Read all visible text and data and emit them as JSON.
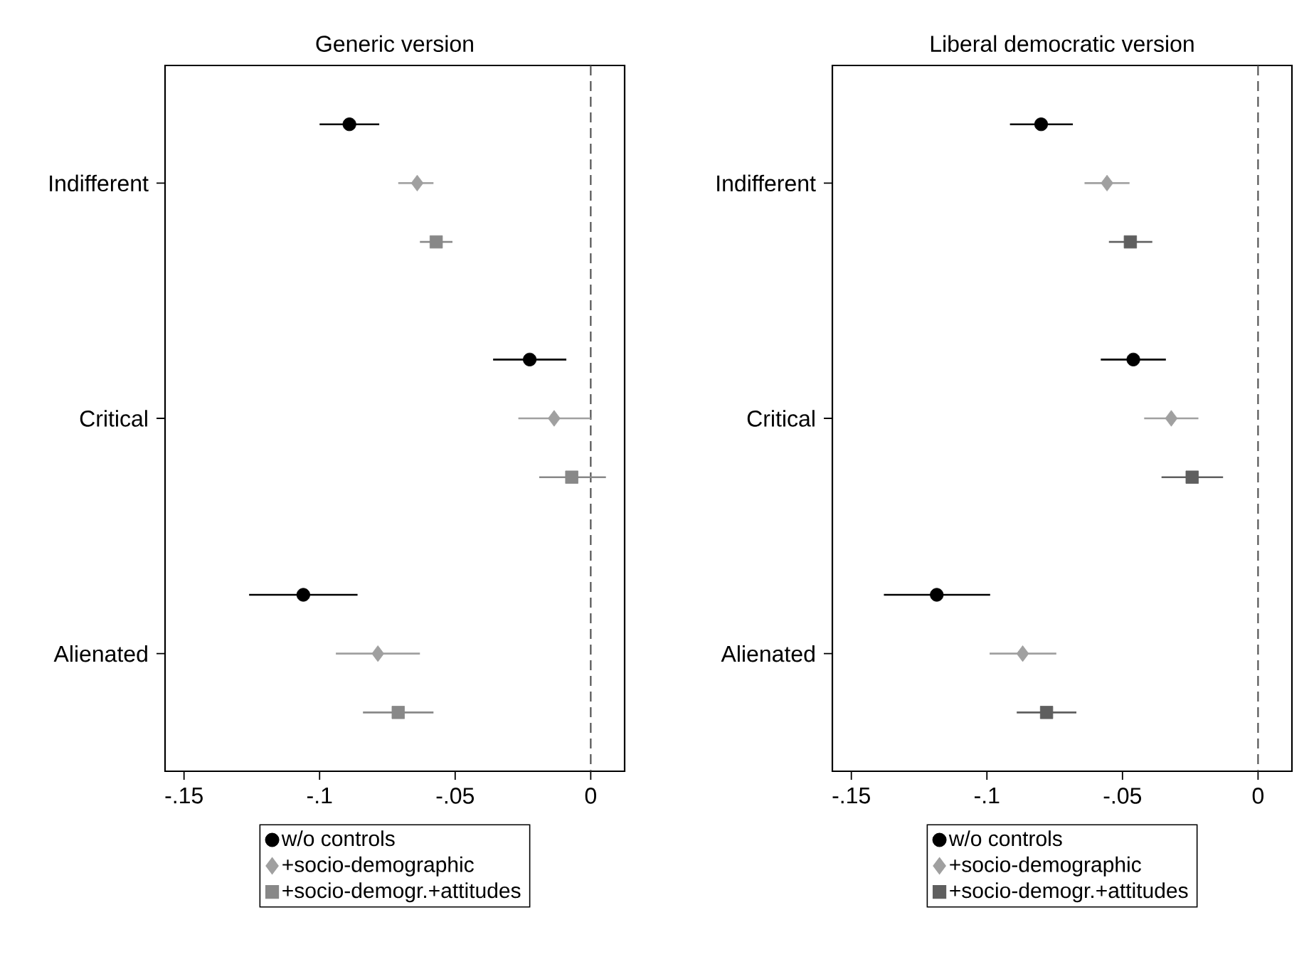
{
  "chart_data": [
    {
      "type": "scatter",
      "orientation": "horizontal",
      "title": "Generic version",
      "categories": [
        "Indifferent",
        "Critical",
        "Alienated"
      ],
      "xlim": [
        -0.157,
        0.0125
      ],
      "xticks": [
        {
          "value": -0.15,
          "label": "-.15"
        },
        {
          "value": -0.1,
          "label": "-.1"
        },
        {
          "value": -0.05,
          "label": "-.05"
        },
        {
          "value": 0,
          "label": "0"
        }
      ],
      "ref_lines": [
        {
          "axis": "x",
          "value": 0,
          "color": "#555555",
          "line_style": "dashed"
        }
      ],
      "legend": "bottom",
      "series": [
        {
          "name": "w/o controls",
          "color": "#000000",
          "marker": "circle",
          "values": [
            -0.089,
            -0.0225,
            -0.106
          ],
          "errors": [
            [
              -0.1,
              -0.078
            ],
            [
              -0.036,
              -0.009
            ],
            [
              -0.126,
              -0.086
            ]
          ]
        },
        {
          "name": "+socio-demographic",
          "color": "#a0a0a0",
          "marker": "diamond",
          "values": [
            -0.064,
            -0.0135,
            -0.0785
          ],
          "errors": [
            [
              -0.071,
              -0.058
            ],
            [
              -0.0267,
              0.0
            ],
            [
              -0.094,
              -0.063
            ]
          ]
        },
        {
          "name": "+socio-demogr.+attitudes",
          "color": "#888888",
          "marker": "square",
          "values": [
            -0.057,
            -0.007,
            -0.071
          ],
          "errors": [
            [
              -0.063,
              -0.051
            ],
            [
              -0.019,
              0.0056
            ],
            [
              -0.084,
              -0.058
            ]
          ]
        }
      ]
    },
    {
      "type": "scatter",
      "orientation": "horizontal",
      "title": "Liberal democratic version",
      "categories": [
        "Indifferent",
        "Critical",
        "Alienated"
      ],
      "xlim": [
        -0.157,
        0.0125
      ],
      "xticks": [
        {
          "value": -0.15,
          "label": "-.15"
        },
        {
          "value": -0.1,
          "label": "-.1"
        },
        {
          "value": -0.05,
          "label": "-.05"
        },
        {
          "value": 0,
          "label": "0"
        }
      ],
      "ref_lines": [
        {
          "axis": "x",
          "value": 0,
          "color": "#555555",
          "line_style": "dashed"
        }
      ],
      "legend": "bottom",
      "series": [
        {
          "name": "w/o controls",
          "color": "#000000",
          "marker": "circle",
          "values": [
            -0.08,
            -0.046,
            -0.1185
          ],
          "errors": [
            [
              -0.0915,
              -0.0683
            ],
            [
              -0.058,
              -0.034
            ],
            [
              -0.138,
              -0.0988
            ]
          ]
        },
        {
          "name": "+socio-demographic",
          "color": "#a0a0a0",
          "marker": "diamond",
          "values": [
            -0.0557,
            -0.032,
            -0.0868
          ],
          "errors": [
            [
              -0.064,
              -0.0474
            ],
            [
              -0.042,
              -0.022
            ],
            [
              -0.099,
              -0.0744
            ]
          ]
        },
        {
          "name": "+socio-demogr.+attitudes",
          "color": "#5f5f5f",
          "marker": "square",
          "values": [
            -0.0471,
            -0.0243,
            -0.078
          ],
          "errors": [
            [
              -0.055,
              -0.039
            ],
            [
              -0.0356,
              -0.0129
            ],
            [
              -0.089,
              -0.067
            ]
          ]
        }
      ]
    }
  ]
}
